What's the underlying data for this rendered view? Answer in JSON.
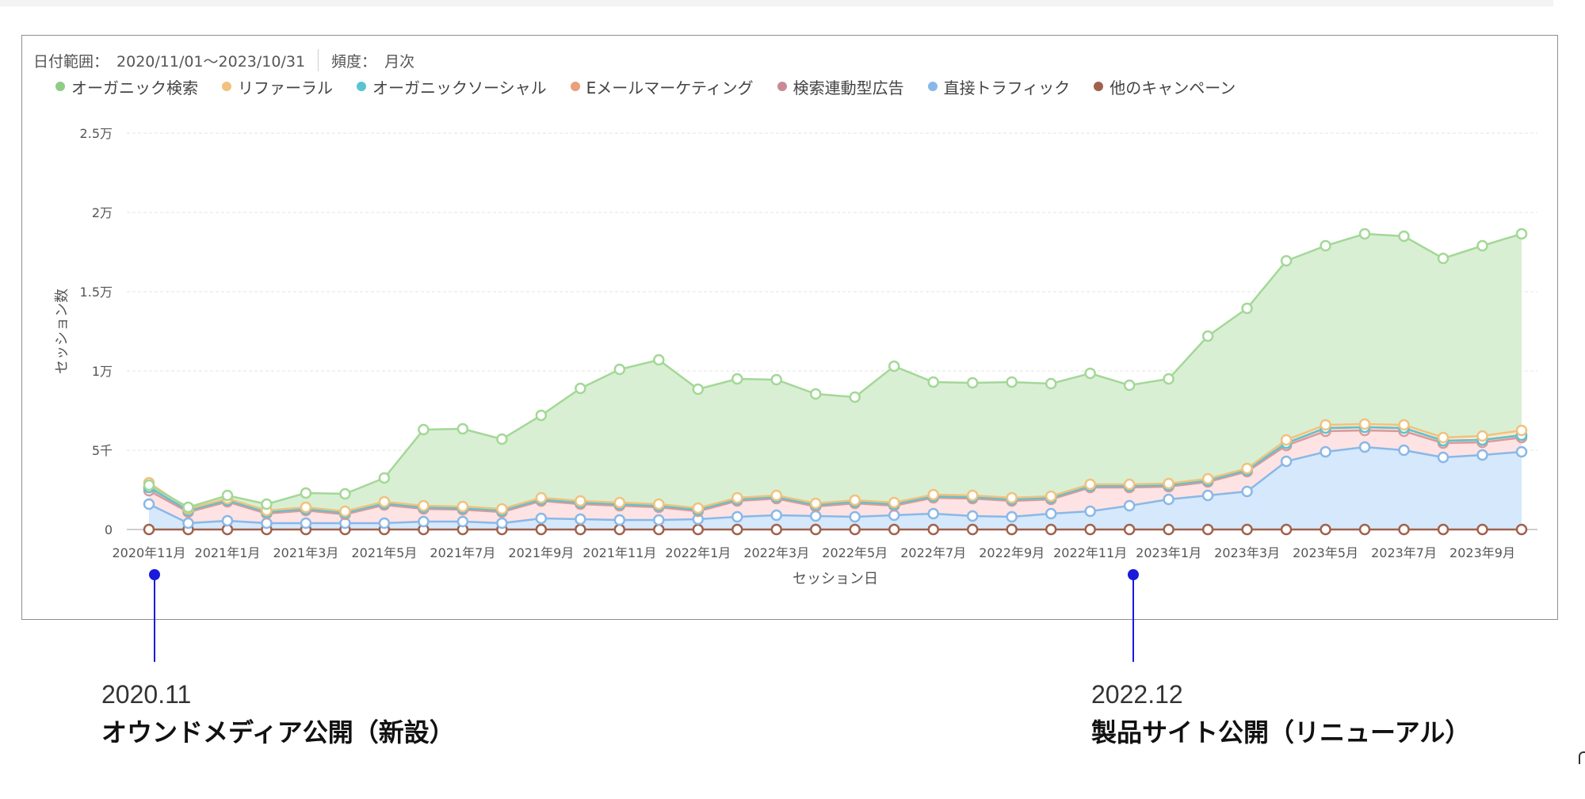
{
  "filters": {
    "date_range_label": "日付範囲：",
    "date_range_value": "2020/11/01～2023/10/31",
    "frequency_label": "頻度：",
    "frequency_value": "月次"
  },
  "chart_data": {
    "type": "area",
    "stacked": true,
    "xlabel": "セッション日",
    "ylabel": "セッション数",
    "ylim": [
      0,
      25000
    ],
    "yticks": [
      {
        "value": 0,
        "label": "0"
      },
      {
        "value": 5000,
        "label": "5千"
      },
      {
        "value": 10000,
        "label": "1万"
      },
      {
        "value": 15000,
        "label": "1.5万"
      },
      {
        "value": 20000,
        "label": "2万"
      },
      {
        "value": 25000,
        "label": "2.5万"
      }
    ],
    "grid": true,
    "legend_position": "top-left",
    "x": [
      "2020年11月",
      "2020年12月",
      "2021年1月",
      "2021年2月",
      "2021年3月",
      "2021年4月",
      "2021年5月",
      "2021年6月",
      "2021年7月",
      "2021年8月",
      "2021年9月",
      "2021年10月",
      "2021年11月",
      "2021年12月",
      "2022年1月",
      "2022年2月",
      "2022年3月",
      "2022年4月",
      "2022年5月",
      "2022年6月",
      "2022年7月",
      "2022年8月",
      "2022年9月",
      "2022年10月",
      "2022年11月",
      "2022年12月",
      "2023年1月",
      "2023年2月",
      "2023年3月",
      "2023年4月",
      "2023年5月",
      "2023年6月",
      "2023年7月",
      "2023年8月",
      "2023年9月",
      "2023年10月"
    ],
    "xtick_labels": [
      "2020年11月",
      "2021年1月",
      "2021年3月",
      "2021年5月",
      "2021年7月",
      "2021年9月",
      "2021年11月",
      "2022年1月",
      "2022年3月",
      "2022年5月",
      "2022年7月",
      "2022年9月",
      "2022年11月",
      "2023年1月",
      "2023年3月",
      "2023年5月",
      "2023年7月",
      "2023年9月"
    ],
    "xtick_indices": [
      0,
      2,
      4,
      6,
      8,
      10,
      12,
      14,
      16,
      18,
      20,
      22,
      24,
      26,
      28,
      30,
      32,
      34
    ],
    "series": [
      {
        "name": "他のキャンペーン",
        "color": "#a0624d",
        "line": "#a0624d",
        "fill": "rgba(0,0,0,0)",
        "values": [
          0,
          0,
          0,
          0,
          0,
          0,
          0,
          0,
          0,
          0,
          0,
          0,
          0,
          0,
          0,
          0,
          0,
          0,
          0,
          0,
          0,
          0,
          0,
          0,
          0,
          0,
          0,
          0,
          0,
          0,
          0,
          0,
          0,
          0,
          0,
          0
        ]
      },
      {
        "name": "直接トラフィック",
        "color": "#89b8e8",
        "line": "#89b8e8",
        "fill": "#d6e8fb",
        "values": [
          1600,
          400,
          550,
          400,
          400,
          400,
          400,
          500,
          500,
          400,
          700,
          650,
          600,
          600,
          650,
          800,
          900,
          850,
          800,
          900,
          1000,
          850,
          800,
          1000,
          1150,
          1500,
          1900,
          2150,
          2400,
          4300,
          4900,
          5200,
          5000,
          4550,
          4700,
          4900
        ]
      },
      {
        "name": "検索連動型広告",
        "color": "#c98a96",
        "line": "#d99a9a",
        "fill": "#fde3e3",
        "values": [
          850,
          700,
          1200,
          600,
          800,
          550,
          1150,
          800,
          750,
          700,
          1100,
          950,
          900,
          800,
          500,
          1000,
          1050,
          600,
          850,
          600,
          1000,
          1100,
          1000,
          900,
          1500,
          1150,
          800,
          850,
          1250,
          1000,
          1300,
          1050,
          1200,
          900,
          800,
          900
        ]
      },
      {
        "name": "Eメールマーケティング",
        "color": "#e8a07d",
        "line": "#e8a07d",
        "fill": "#fbe0d2",
        "values": [
          200,
          100,
          100,
          100,
          100,
          100,
          100,
          100,
          100,
          100,
          100,
          100,
          100,
          100,
          100,
          100,
          100,
          100,
          100,
          100,
          100,
          100,
          100,
          100,
          100,
          100,
          100,
          100,
          100,
          150,
          200,
          200,
          200,
          150,
          150,
          150
        ]
      },
      {
        "name": "オーガニックソーシャル",
        "color": "#5cc3d2",
        "line": "#5cc3d2",
        "fill": "rgba(0,0,0,0)",
        "values": [
          0,
          0,
          0,
          0,
          0,
          0,
          0,
          0,
          0,
          0,
          0,
          0,
          0,
          0,
          0,
          0,
          0,
          0,
          0,
          0,
          0,
          0,
          0,
          0,
          0,
          0,
          0,
          0,
          0,
          0,
          0,
          0,
          0,
          0,
          0,
          0
        ]
      },
      {
        "name": "リファーラル",
        "color": "#f0c27e",
        "line": "#f0c27e",
        "fill": "#fbe8cc",
        "values": [
          300,
          100,
          100,
          100,
          100,
          100,
          100,
          100,
          100,
          100,
          100,
          100,
          100,
          100,
          100,
          100,
          100,
          100,
          100,
          100,
          100,
          100,
          100,
          100,
          100,
          100,
          100,
          100,
          100,
          200,
          200,
          200,
          200,
          200,
          250,
          300
        ]
      },
      {
        "name": "オーガニック検索",
        "color": "#8fcc84",
        "line": "#a3d897",
        "fill": "#d9efd4",
        "values": [
          -150,
          100,
          200,
          400,
          900,
          1100,
          1500,
          4800,
          4900,
          4400,
          5200,
          7100,
          8400,
          9100,
          7500,
          7500,
          7300,
          6900,
          6500,
          8600,
          7100,
          7100,
          7300,
          7100,
          7000,
          6250,
          6600,
          9000,
          10100,
          11300,
          11300,
          12000,
          11900,
          11300,
          12000,
          12400
        ]
      }
    ],
    "annotations": [
      {
        "x": "2020年11月",
        "date": "2020.11",
        "label": "オウンドメディア公開（新設）"
      },
      {
        "x": "2022年12月",
        "date": "2022.12",
        "label": "製品サイト公開（リニューアル）"
      }
    ]
  }
}
